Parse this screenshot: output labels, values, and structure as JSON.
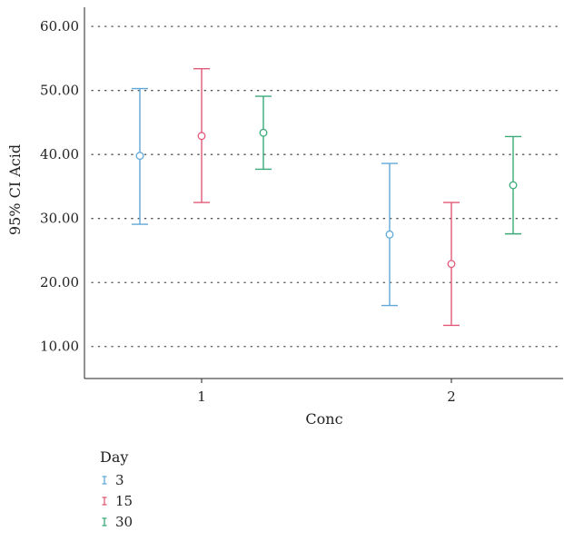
{
  "chart_data": {
    "type": "errorbar",
    "xlabel": "Conc",
    "ylabel": "95% CI Acid",
    "categories": [
      "1",
      "2"
    ],
    "ylim": [
      5,
      63
    ],
    "yticks": [
      "10.00",
      "20.00",
      "30.00",
      "40.00",
      "50.00",
      "60.00"
    ],
    "ytick_values": [
      10,
      20,
      30,
      40,
      50,
      60
    ],
    "grid": "dotted horizontal",
    "legend": {
      "title": "Day",
      "placement": "bottom-left"
    },
    "series": [
      {
        "name": "3",
        "color": "#5fa8d8",
        "mean": [
          39.8,
          27.5
        ],
        "lower": [
          29.1,
          16.4
        ],
        "upper": [
          50.3,
          38.6
        ]
      },
      {
        "name": "15",
        "color": "#e05a78",
        "mean": [
          42.9,
          22.9
        ],
        "lower": [
          32.5,
          13.3
        ],
        "upper": [
          53.4,
          32.5
        ]
      },
      {
        "name": "30",
        "color": "#3aaa78",
        "mean": [
          43.4,
          35.2
        ],
        "lower": [
          37.7,
          27.6
        ],
        "upper": [
          49.1,
          42.8
        ]
      }
    ]
  }
}
